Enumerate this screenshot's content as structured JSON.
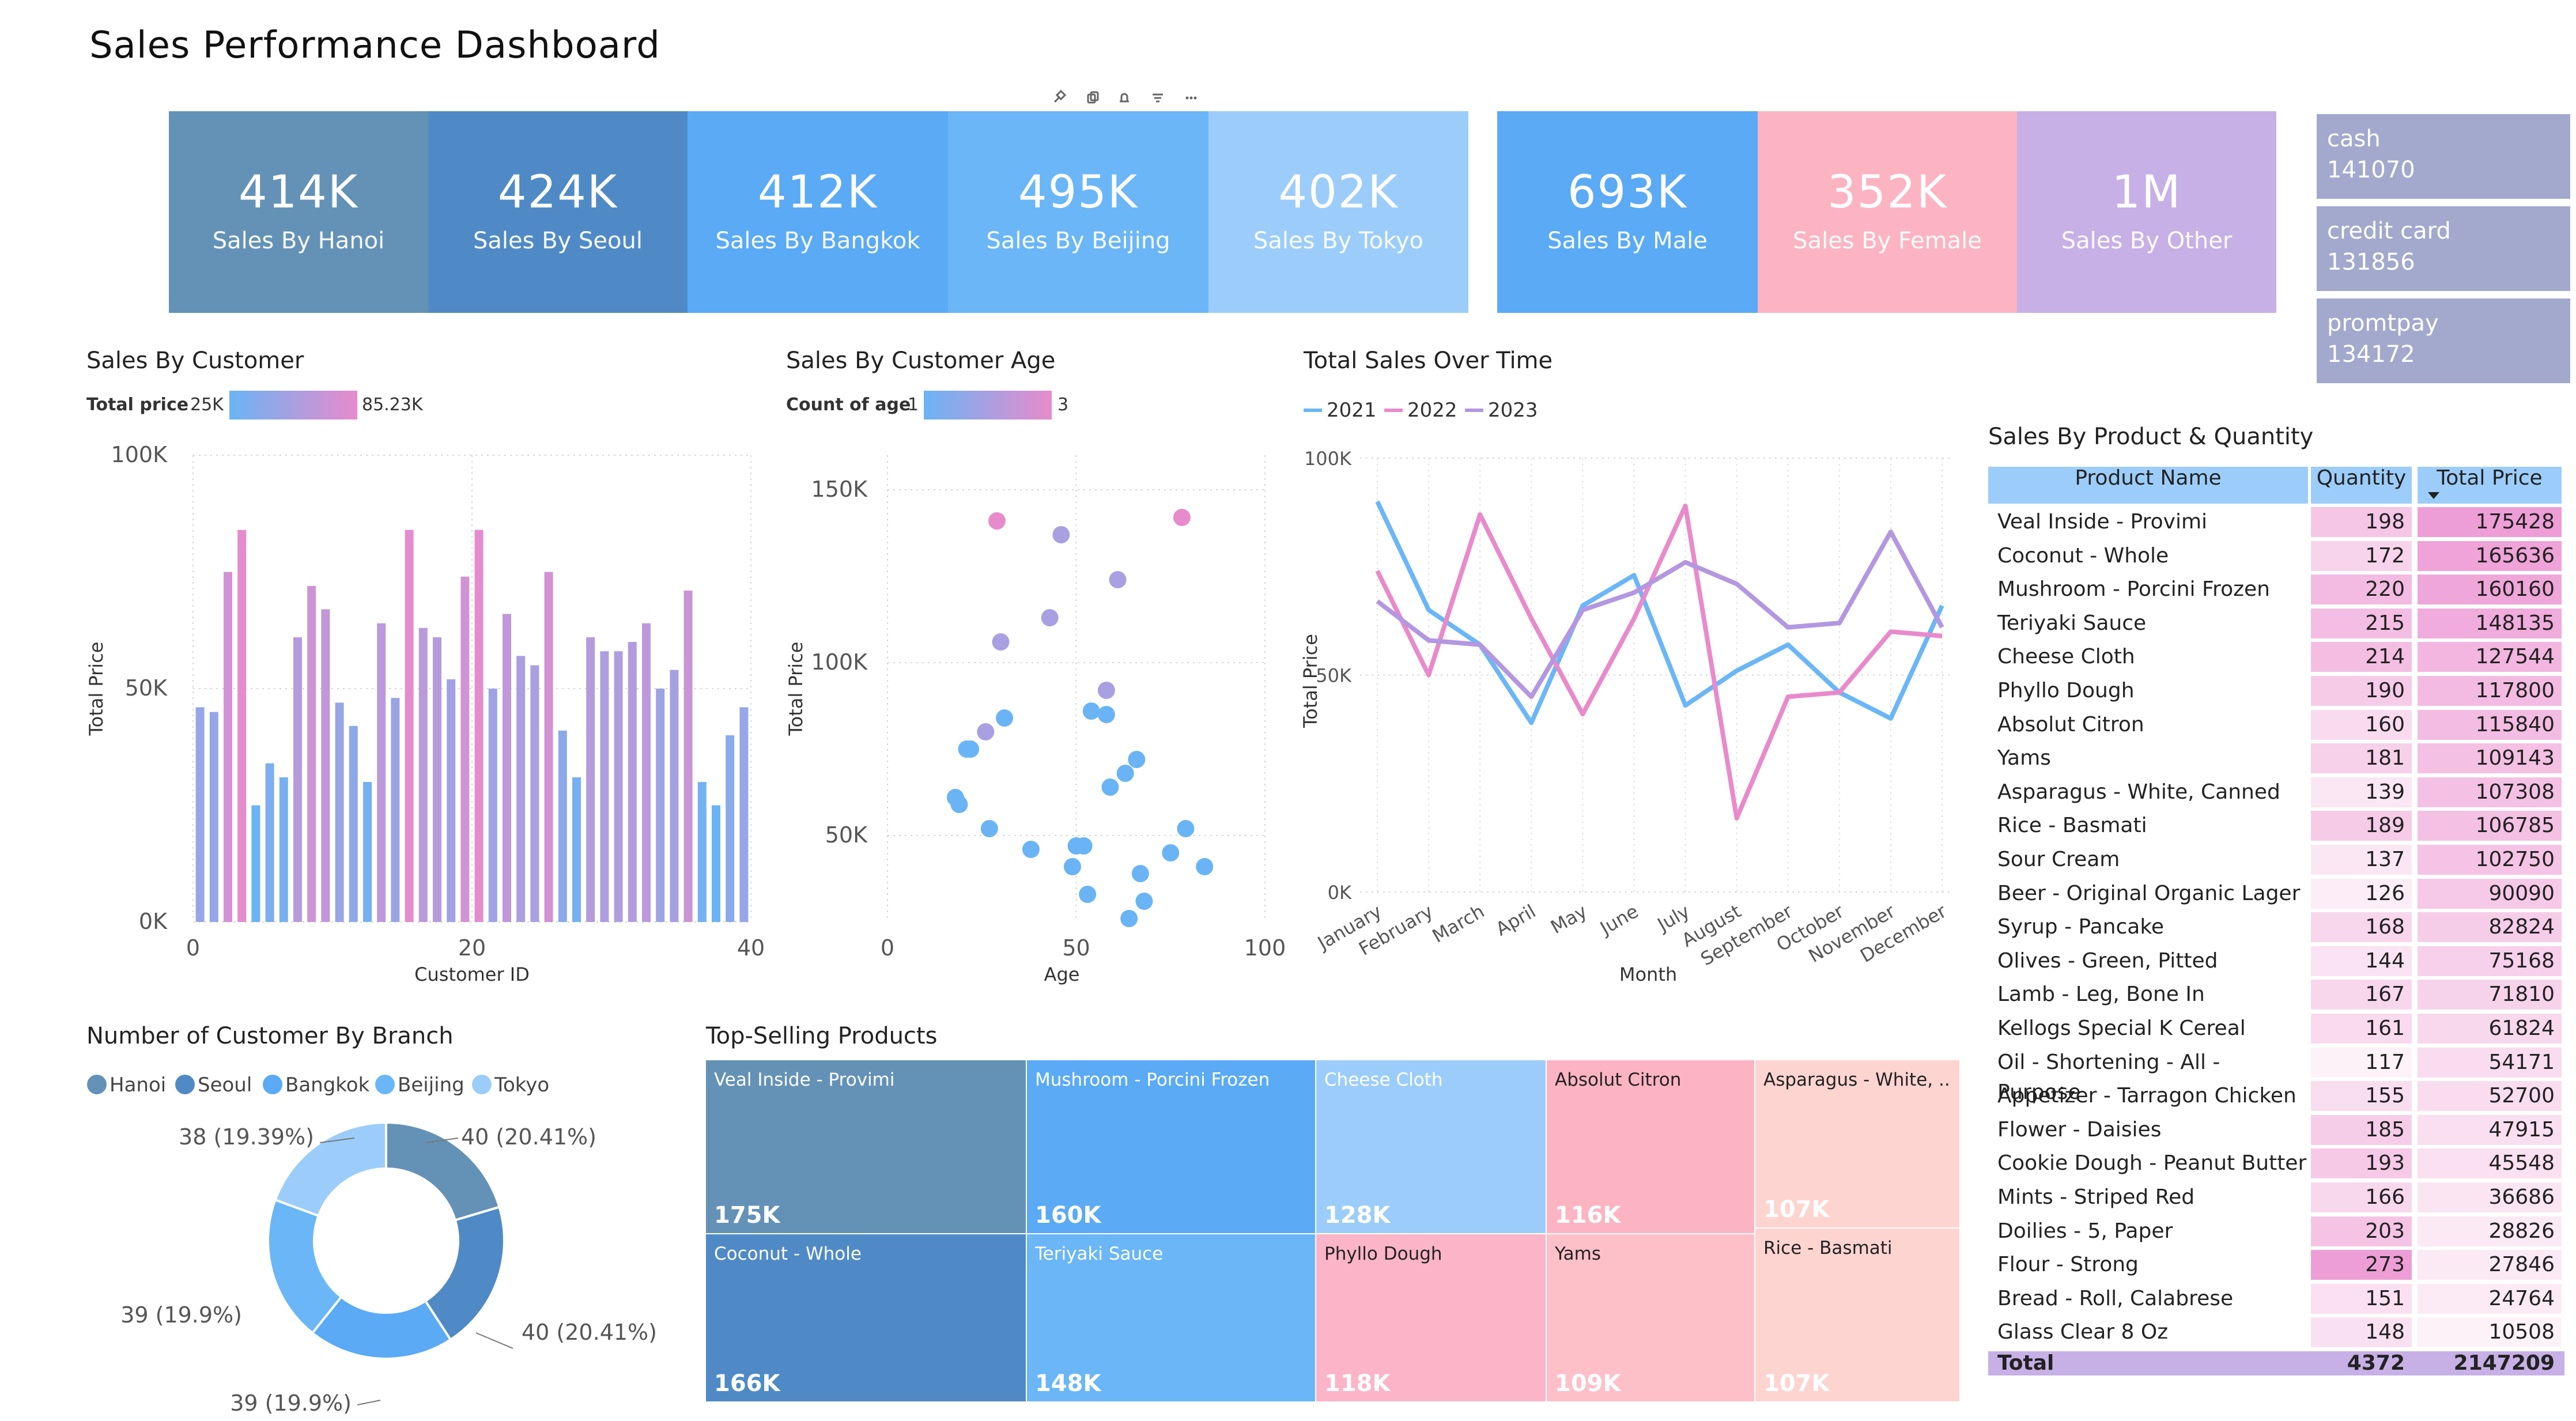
{
  "title": "Sales Performance Dashboard",
  "kpis": [
    {
      "value": "414K",
      "label": "Sales By Hanoi",
      "color": "#6492b7"
    },
    {
      "value": "424K",
      "label": "Sales By Seoul",
      "color": "#4f8ac6"
    },
    {
      "value": "412K",
      "label": "Sales By Bangkok",
      "color": "#5aaaf5"
    },
    {
      "value": "495K",
      "label": "Sales By Beijing",
      "color": "#6ab6f7"
    },
    {
      "value": "402K",
      "label": "Sales By Tokyo",
      "color": "#9ccdfa"
    },
    {
      "value": "693K",
      "label": "Sales By Male",
      "color": "#5aaaf5"
    },
    {
      "value": "352K",
      "label": "Sales By Female",
      "color": "#fcb4c2"
    },
    {
      "value": "1M",
      "label": "Sales By Other",
      "color": "#c7b0e6"
    }
  ],
  "payments": [
    {
      "method": "cash",
      "amount": "141070"
    },
    {
      "method": "credit card",
      "amount": "131856"
    },
    {
      "method": "promtpay",
      "amount": "134172"
    }
  ],
  "chart_data": [
    {
      "id": "sales-by-customer",
      "type": "bar",
      "title": "Sales By Customer",
      "legend_title": "Total price",
      "color_scale": {
        "min_label": "25K",
        "max_label": "85.23K",
        "min": 25000,
        "max": 85230,
        "from": "#6ab4f5",
        "to": "#e78bcc"
      },
      "xlabel": "Customer ID",
      "ylabel": "Total Price",
      "xlim": [
        0,
        40
      ],
      "ylim": [
        0,
        100000
      ],
      "xticks": [
        "0",
        "20",
        "40"
      ],
      "yticks": [
        "0K",
        "50K",
        "100K"
      ],
      "x": [
        1,
        2,
        3,
        4,
        5,
        6,
        7,
        8,
        9,
        10,
        11,
        12,
        13,
        14,
        15,
        16,
        17,
        18,
        19,
        20,
        21,
        22,
        23,
        24,
        25,
        26,
        27,
        28,
        29,
        30,
        31,
        32,
        33,
        34,
        35,
        36,
        37,
        38,
        39,
        40
      ],
      "values": [
        46000,
        45000,
        75000,
        84000,
        25000,
        34000,
        31000,
        61000,
        72000,
        67000,
        47000,
        42000,
        30000,
        64000,
        48000,
        84000,
        63000,
        61000,
        52000,
        74000,
        84000,
        50000,
        66000,
        57000,
        55000,
        75000,
        41000,
        31000,
        61000,
        58000,
        58000,
        60000,
        64000,
        50000,
        54000,
        71000,
        30000,
        25000,
        40000,
        46000
      ]
    },
    {
      "id": "sales-by-customer-age",
      "type": "scatter",
      "title": "Sales By Customer Age",
      "legend_title": "Count of age",
      "color_scale": {
        "min_label": "1",
        "max_label": "3",
        "min": 1,
        "max": 3,
        "from": "#6ab4f5",
        "to": "#e78bcc"
      },
      "xlabel": "Age",
      "ylabel": "Total Price",
      "xlim": [
        0,
        100
      ],
      "ylim": [
        25000,
        160000
      ],
      "xticks": [
        "0",
        "50",
        "100"
      ],
      "yticks": [
        "50K",
        "100K",
        "150K"
      ],
      "points": [
        {
          "x": 29,
          "y": 141000,
          "c": 3
        },
        {
          "x": 46,
          "y": 137000,
          "c": 2
        },
        {
          "x": 78,
          "y": 142000,
          "c": 3
        },
        {
          "x": 61,
          "y": 124000,
          "c": 2
        },
        {
          "x": 43,
          "y": 113000,
          "c": 2
        },
        {
          "x": 30,
          "y": 106000,
          "c": 2
        },
        {
          "x": 58,
          "y": 92000,
          "c": 2
        },
        {
          "x": 26,
          "y": 80000,
          "c": 2
        },
        {
          "x": 31,
          "y": 84000,
          "c": 1
        },
        {
          "x": 54,
          "y": 86000,
          "c": 1
        },
        {
          "x": 58,
          "y": 85000,
          "c": 1
        },
        {
          "x": 21,
          "y": 75000,
          "c": 1
        },
        {
          "x": 22,
          "y": 75000,
          "c": 1
        },
        {
          "x": 66,
          "y": 72000,
          "c": 1
        },
        {
          "x": 63,
          "y": 68000,
          "c": 1
        },
        {
          "x": 59,
          "y": 64000,
          "c": 1
        },
        {
          "x": 18,
          "y": 61000,
          "c": 1
        },
        {
          "x": 19,
          "y": 59000,
          "c": 1
        },
        {
          "x": 27,
          "y": 52000,
          "c": 1
        },
        {
          "x": 79,
          "y": 52000,
          "c": 1
        },
        {
          "x": 50,
          "y": 47000,
          "c": 1
        },
        {
          "x": 52,
          "y": 47000,
          "c": 1
        },
        {
          "x": 38,
          "y": 46000,
          "c": 1
        },
        {
          "x": 75,
          "y": 45000,
          "c": 1
        },
        {
          "x": 84,
          "y": 41000,
          "c": 1
        },
        {
          "x": 49,
          "y": 41000,
          "c": 1
        },
        {
          "x": 67,
          "y": 39000,
          "c": 1
        },
        {
          "x": 53,
          "y": 33000,
          "c": 1
        },
        {
          "x": 68,
          "y": 31000,
          "c": 1
        },
        {
          "x": 64,
          "y": 26000,
          "c": 1
        }
      ]
    },
    {
      "id": "total-sales-over-time",
      "type": "line",
      "title": "Total Sales Over Time",
      "xlabel": "Month",
      "ylabel": "Total Price",
      "ylim": [
        0,
        100000
      ],
      "yticks": [
        "0K",
        "50K",
        "100K"
      ],
      "categories": [
        "January",
        "February",
        "March",
        "April",
        "May",
        "June",
        "July",
        "August",
        "September",
        "October",
        "November",
        "December"
      ],
      "series": [
        {
          "name": "2021",
          "color": "#6ab6f7",
          "values": [
            90000,
            65000,
            57000,
            39000,
            66000,
            73000,
            43000,
            51000,
            57000,
            46000,
            40000,
            66000
          ]
        },
        {
          "name": "2022",
          "color": "#e88acb",
          "values": [
            74000,
            50000,
            87000,
            63000,
            41000,
            63000,
            89000,
            17000,
            45000,
            46000,
            60000,
            59000
          ]
        },
        {
          "name": "2023",
          "color": "#b397e0",
          "values": [
            67000,
            58000,
            57000,
            45000,
            65000,
            69000,
            76000,
            71000,
            61000,
            62000,
            83000,
            61000
          ]
        }
      ]
    },
    {
      "id": "customers-by-branch",
      "type": "pie",
      "title": "Number of Customer By Branch",
      "categories": [
        "Hanoi",
        "Seoul",
        "Bangkok",
        "Beijing",
        "Tokyo"
      ],
      "colors": [
        "#6492b7",
        "#4f8ac6",
        "#5aaaf5",
        "#6ab6f7",
        "#9ccdfa"
      ],
      "values": [
        40,
        40,
        39,
        39,
        38
      ],
      "labels": [
        "40 (20.41%)",
        "40 (20.41%)",
        "39 (19.9%)",
        "39 (19.9%)",
        "38 (19.39%)"
      ]
    },
    {
      "id": "top-selling-products",
      "type": "treemap",
      "title": "Top-Selling Products",
      "items": [
        {
          "name": "Veal Inside - Provimi",
          "label": "175K",
          "value": 175428,
          "color": "#6492b7"
        },
        {
          "name": "Coconut - Whole",
          "label": "166K",
          "value": 165636,
          "color": "#4f8ac6"
        },
        {
          "name": "Mushroom - Porcini Frozen",
          "label": "160K",
          "value": 160160,
          "color": "#5aaaf5"
        },
        {
          "name": "Teriyaki Sauce",
          "label": "148K",
          "value": 148135,
          "color": "#6ab6f7"
        },
        {
          "name": "Cheese Cloth",
          "label": "128K",
          "value": 127544,
          "color": "#9ccdfa"
        },
        {
          "name": "Phyllo Dough",
          "label": "118K",
          "value": 117800,
          "color": "#fcb4c8"
        },
        {
          "name": "Absolut Citron",
          "label": "116K",
          "value": 115840,
          "color": "#fdb4c2"
        },
        {
          "name": "Yams",
          "label": "109K",
          "value": 109143,
          "color": "#fdc0c9"
        },
        {
          "name": "Asparagus - White, ...",
          "label": "107K",
          "value": 107308,
          "color": "#fed4d0"
        },
        {
          "name": "Rice - Basmati",
          "label": "107K",
          "value": 106785,
          "color": "#fed4d0"
        }
      ]
    },
    {
      "id": "sales-by-product-quantity",
      "type": "table",
      "title": "Sales By Product & Quantity",
      "headers": [
        "Product Name",
        "Quantity",
        "Total Price"
      ],
      "rows": [
        [
          "Veal Inside - Provimi",
          "198",
          "175428"
        ],
        [
          "Coconut - Whole",
          "172",
          "165636"
        ],
        [
          "Mushroom - Porcini Frozen",
          "220",
          "160160"
        ],
        [
          "Teriyaki Sauce",
          "215",
          "148135"
        ],
        [
          "Cheese Cloth",
          "214",
          "127544"
        ],
        [
          "Phyllo Dough",
          "190",
          "117800"
        ],
        [
          "Absolut Citron",
          "160",
          "115840"
        ],
        [
          "Yams",
          "181",
          "109143"
        ],
        [
          "Asparagus - White, Canned",
          "139",
          "107308"
        ],
        [
          "Rice - Basmati",
          "189",
          "106785"
        ],
        [
          "Sour Cream",
          "137",
          "102750"
        ],
        [
          "Beer - Original Organic Lager",
          "126",
          "90090"
        ],
        [
          "Syrup - Pancake",
          "168",
          "82824"
        ],
        [
          "Olives - Green, Pitted",
          "144",
          "75168"
        ],
        [
          "Lamb - Leg, Bone In",
          "167",
          "71810"
        ],
        [
          "Kellogs Special K Cereal",
          "161",
          "61824"
        ],
        [
          "Oil - Shortening - All - Purpose",
          "117",
          "54171"
        ],
        [
          "Appetizer - Tarragon Chicken",
          "155",
          "52700"
        ],
        [
          "Flower - Daisies",
          "185",
          "47915"
        ],
        [
          "Cookie Dough - Peanut Butter",
          "193",
          "45548"
        ],
        [
          "Mints - Striped Red",
          "166",
          "36686"
        ],
        [
          "Doilies - 5, Paper",
          "203",
          "28826"
        ],
        [
          "Flour - Strong",
          "273",
          "27846"
        ],
        [
          "Bread - Roll, Calabrese",
          "151",
          "24764"
        ],
        [
          "Glass Clear 8 Oz",
          "148",
          "10508"
        ]
      ],
      "total": [
        "Total",
        "4372",
        "2147209"
      ]
    }
  ]
}
